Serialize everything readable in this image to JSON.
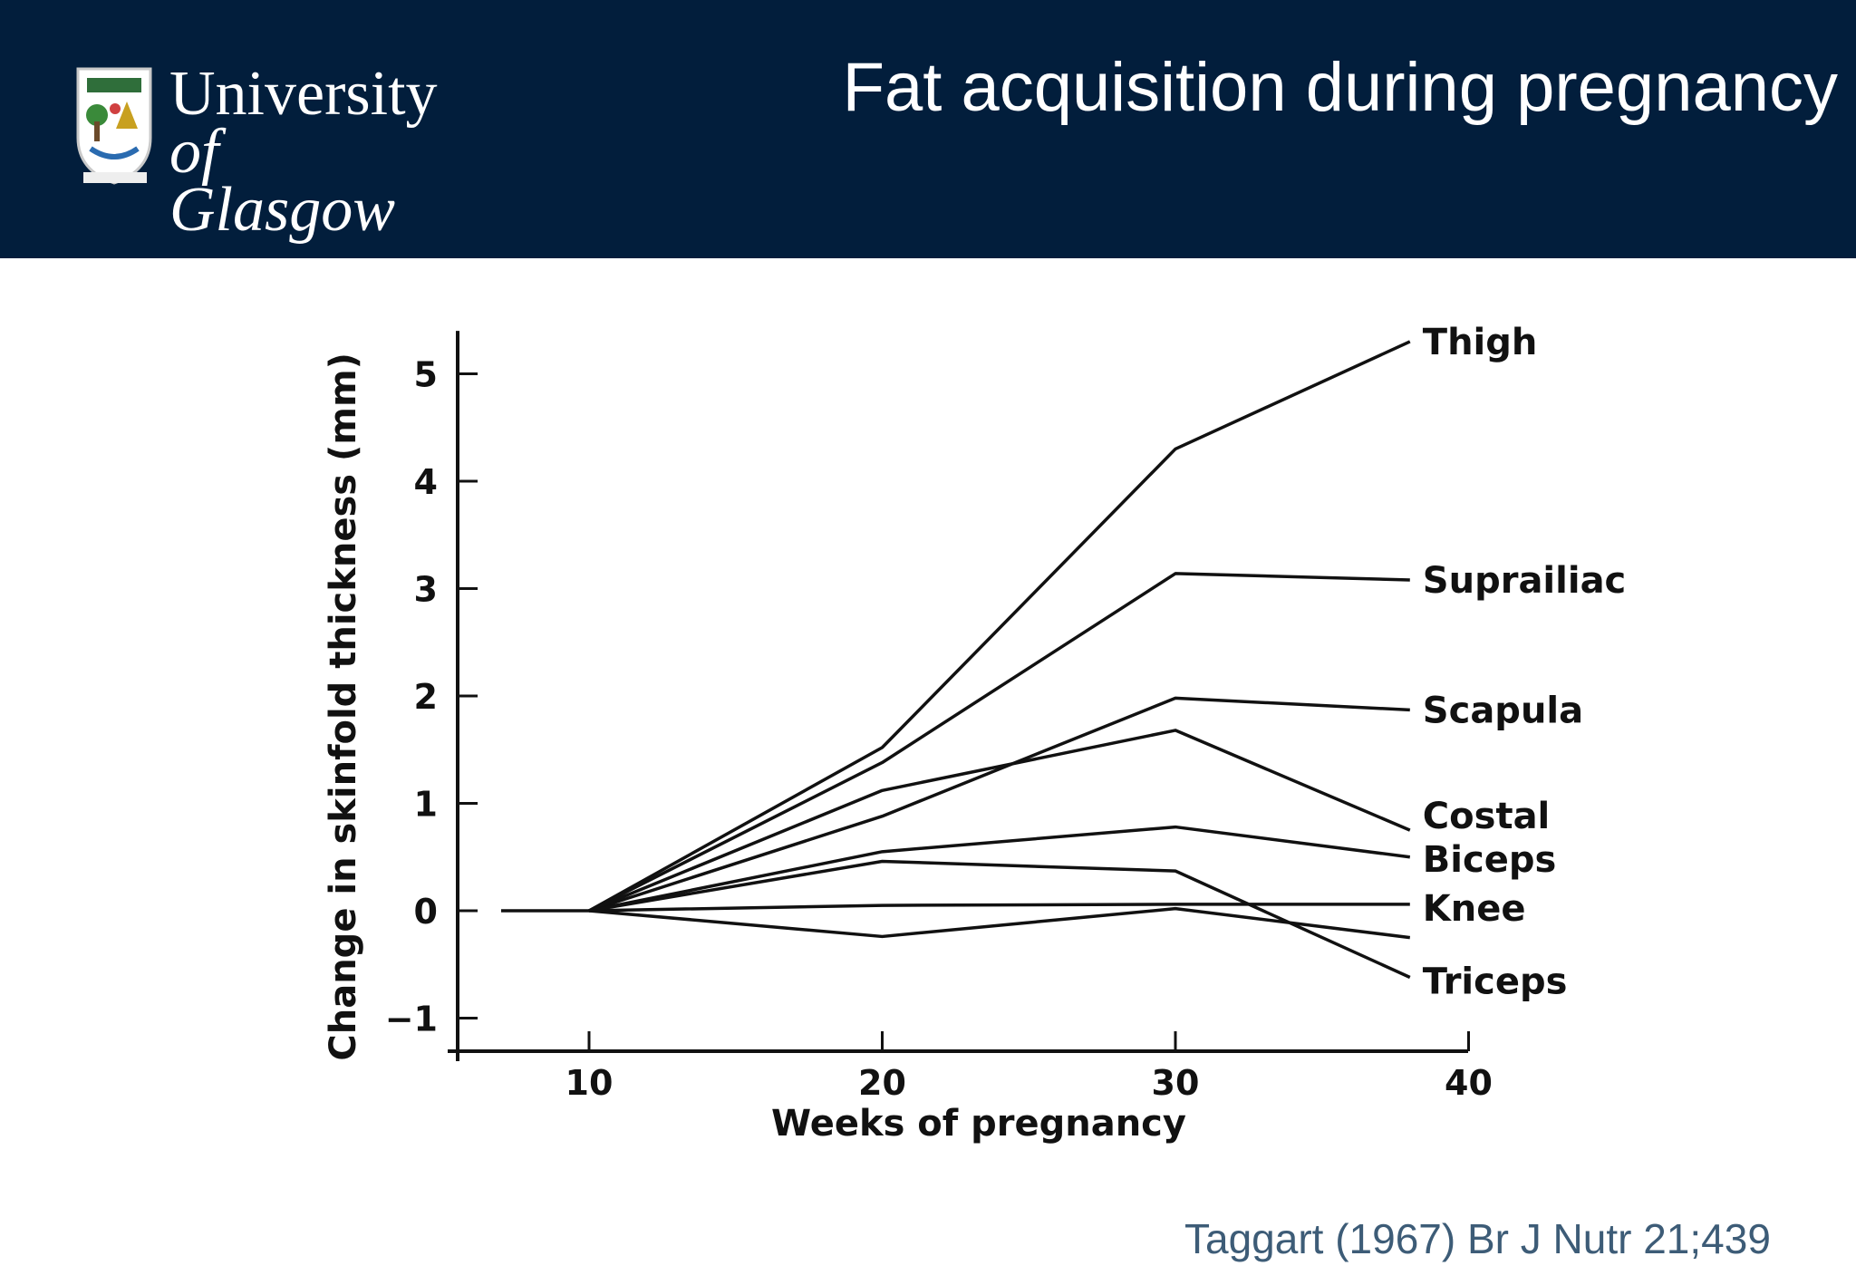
{
  "header": {
    "logo_line1": "University",
    "logo_line2": "of Glasgow",
    "title": "Fat acquisition during pregnancy"
  },
  "citation": "Taggart (1967) Br J Nutr 21;439",
  "colors": {
    "header_bg": "#021e3c",
    "citation": "#3d5c77",
    "lines": "#111111"
  },
  "chart_data": {
    "type": "line",
    "xlabel": "Weeks of pregnancy",
    "ylabel": "Change in skinfold thickness (mm)",
    "xlim": [
      5,
      40
    ],
    "ylim": [
      -1.3,
      5.4
    ],
    "x_ticks": [
      10,
      20,
      30,
      40
    ],
    "y_ticks": [
      -1,
      0,
      1,
      2,
      3,
      4,
      5
    ],
    "x_tick_labels": [
      "10",
      "20",
      "30",
      "40"
    ],
    "y_tick_labels": [
      "−1",
      "0",
      "1",
      "2",
      "3",
      "4",
      "5"
    ],
    "grid": false,
    "legend": "labels at line ends (right)",
    "series": [
      {
        "name": "Thigh",
        "x": [
          10,
          20,
          30,
          38
        ],
        "y": [
          0,
          1.52,
          4.3,
          5.3
        ]
      },
      {
        "name": "Suprailiac",
        "x": [
          10,
          20,
          30,
          38
        ],
        "y": [
          0,
          1.38,
          3.14,
          3.08
        ]
      },
      {
        "name": "Scapula",
        "x": [
          10,
          20,
          30,
          38
        ],
        "y": [
          0,
          0.88,
          1.98,
          1.87
        ]
      },
      {
        "name": "Costal",
        "x": [
          10,
          20,
          30,
          38
        ],
        "y": [
          0,
          1.12,
          1.68,
          0.75
        ]
      },
      {
        "name": "Biceps",
        "x": [
          10,
          20,
          30,
          38
        ],
        "y": [
          0,
          0.55,
          0.78,
          0.5
        ]
      },
      {
        "name": "Knee",
        "x": [
          7,
          10,
          20,
          30,
          38
        ],
        "y": [
          0,
          0,
          0.05,
          0.06,
          0.06
        ]
      },
      {
        "name": "Triceps",
        "x": [
          10,
          20,
          30,
          38
        ],
        "y": [
          0,
          0.46,
          0.37,
          -0.62
        ]
      },
      {
        "name": "",
        "x": [
          10,
          20,
          30,
          38
        ],
        "y": [
          0,
          -0.24,
          0.02,
          -0.25
        ]
      }
    ]
  }
}
